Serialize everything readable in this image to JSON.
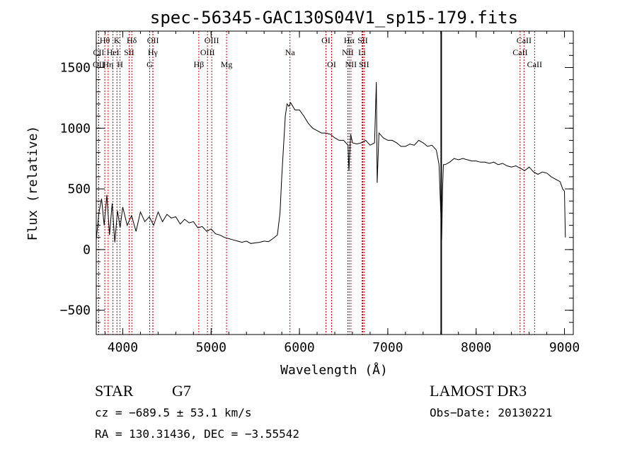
{
  "chart_data": {
    "type": "line",
    "title": "spec-56345-GAC130S04V1_sp15-179.fits",
    "xlabel": "Wavelength (Å)",
    "ylabel": "Flux (relative)",
    "xlim": [
      3700,
      9100
    ],
    "ylim": [
      -700,
      1800
    ],
    "xticks": [
      4000,
      5000,
      6000,
      7000,
      8000,
      9000
    ],
    "yticks": [
      -500,
      0,
      500,
      1000,
      1500
    ],
    "grid": false,
    "series": [
      {
        "x": [
          3700,
          3730,
          3760,
          3790,
          3820,
          3850,
          3880,
          3910,
          3940,
          3970,
          4000,
          4050,
          4100,
          4150,
          4200,
          4250,
          4300,
          4350,
          4400,
          4450,
          4500,
          4550,
          4600,
          4650,
          4700,
          4750,
          4800,
          4850,
          4900,
          4950,
          5000,
          5050,
          5100,
          5150,
          5200,
          5250,
          5300,
          5350,
          5400,
          5450,
          5500,
          5550,
          5600,
          5650,
          5700,
          5750,
          5780,
          5800,
          5820,
          5840,
          5860,
          5880,
          5900,
          5950,
          6000,
          6050,
          6100,
          6150,
          6200,
          6250,
          6300,
          6350,
          6400,
          6450,
          6500,
          6550,
          6560,
          6580,
          6600,
          6650,
          6700,
          6750,
          6800,
          6850,
          6870,
          6880,
          6900,
          6950,
          7000,
          7050,
          7100,
          7150,
          7200,
          7250,
          7300,
          7350,
          7400,
          7450,
          7500,
          7550,
          7580,
          7600,
          7610,
          7620,
          7630,
          7650,
          7700,
          7750,
          7800,
          7850,
          7900,
          7950,
          8000,
          8050,
          8100,
          8150,
          8200,
          8250,
          8300,
          8350,
          8400,
          8450,
          8500,
          8550,
          8600,
          8650,
          8700,
          8750,
          8800,
          8850,
          8900,
          8950,
          8980,
          9000,
          9010
        ],
        "y": [
          80,
          300,
          420,
          200,
          450,
          120,
          380,
          60,
          320,
          180,
          350,
          200,
          280,
          150,
          310,
          230,
          270,
          200,
          310,
          230,
          290,
          260,
          270,
          210,
          250,
          220,
          230,
          180,
          190,
          150,
          170,
          130,
          120,
          100,
          90,
          80,
          70,
          60,
          70,
          50,
          55,
          60,
          70,
          65,
          90,
          120,
          300,
          600,
          850,
          1100,
          1200,
          1180,
          1210,
          1150,
          1150,
          1100,
          1040,
          1000,
          980,
          960,
          960,
          950,
          920,
          900,
          900,
          860,
          650,
          950,
          880,
          870,
          880,
          900,
          860,
          880,
          1380,
          550,
          960,
          920,
          900,
          900,
          880,
          850,
          850,
          870,
          860,
          900,
          880,
          850,
          860,
          820,
          700,
          300,
          80,
          500,
          700,
          700,
          720,
          750,
          740,
          750,
          740,
          730,
          730,
          720,
          720,
          710,
          720,
          700,
          710,
          690,
          680,
          690,
          670,
          650,
          680,
          640,
          620,
          640,
          630,
          600,
          580,
          560,
          500,
          480,
          100
        ]
      }
    ],
    "lines": [
      {
        "label": "Hθ",
        "x": 3797,
        "row": 0
      },
      {
        "label": "K",
        "x": 3934,
        "row": 0
      },
      {
        "label": "Hδ",
        "x": 4102,
        "row": 0
      },
      {
        "label": "OII",
        "x": 4342,
        "row": 0
      },
      {
        "label": "OIII",
        "x": 5007,
        "row": 0
      },
      {
        "label": "OI",
        "x": 6300,
        "row": 0
      },
      {
        "label": "Hα",
        "x": 6563,
        "row": 0
      },
      {
        "label": "SII",
        "x": 6716,
        "row": 0
      },
      {
        "label": "CaII",
        "x": 8542,
        "row": 0
      },
      {
        "label": "CII",
        "x": 3727,
        "row": 1
      },
      {
        "label": "HeI",
        "x": 3889,
        "row": 1
      },
      {
        "label": "SII",
        "x": 4072,
        "row": 1
      },
      {
        "label": "Hγ",
        "x": 4340,
        "row": 1
      },
      {
        "label": "OIII",
        "x": 4959,
        "row": 1
      },
      {
        "label": "Na",
        "x": 5893,
        "row": 1
      },
      {
        "label": "NII",
        "x": 6548,
        "row": 1
      },
      {
        "label": "Li",
        "x": 6708,
        "row": 1
      },
      {
        "label": "CaII",
        "x": 8498,
        "row": 1
      },
      {
        "label": "OII",
        "x": 3727,
        "row": 2
      },
      {
        "label": "Hη",
        "x": 3835,
        "row": 2
      },
      {
        "label": "H",
        "x": 3969,
        "row": 2
      },
      {
        "label": "G",
        "x": 4305,
        "row": 2
      },
      {
        "label": "Hβ",
        "x": 4861,
        "row": 2
      },
      {
        "label": "Mg",
        "x": 5175,
        "row": 2
      },
      {
        "label": "OI",
        "x": 6364,
        "row": 2
      },
      {
        "label": "NII",
        "x": 6583,
        "row": 2
      },
      {
        "label": "SII",
        "x": 6731,
        "row": 2
      },
      {
        "label": "CaII",
        "x": 8662,
        "row": 2
      }
    ],
    "telluric_line_x": 7605
  },
  "info": {
    "object_class": "STAR",
    "subclass": "G7",
    "survey": "LAMOST DR3",
    "redshift_line": "cz = −689.5 ± 53.1 km/s",
    "obs_date": "Obs−Date: 20130221",
    "coords": "RA = 130.31436, DEC =  −3.55542"
  },
  "colors": {
    "spectrum": "#000000",
    "line_markers": "#cc0000",
    "axes": "#000000"
  }
}
